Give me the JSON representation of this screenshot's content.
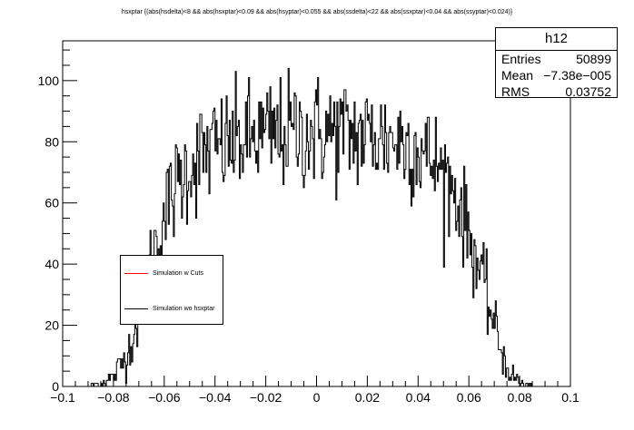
{
  "chart_data": {
    "type": "histogram",
    "title": "hsxptar {(abs(hsdelta)<8 && abs(hsxptar)<0.09 && abs(hsyptar)<0.055 && abs(ssdelta)<22 && abs(ssxptar)<0.04 && abs(ssyptar)<0.024)}",
    "xlim": [
      -0.1,
      0.1
    ],
    "ylim": [
      0,
      113
    ],
    "x_ticks": [
      "-0.1",
      "-0.08",
      "-0.06",
      "-0.04",
      "-0.02",
      "0",
      "0.02",
      "0.04",
      "0.06",
      "0.08",
      "0.1"
    ],
    "y_ticks": [
      "0",
      "20",
      "40",
      "60",
      "80",
      "100"
    ],
    "envelope": {
      "x": [
        -0.09,
        -0.085,
        -0.08,
        -0.075,
        -0.07,
        -0.065,
        -0.06,
        -0.055,
        -0.05,
        -0.045,
        -0.04,
        -0.03,
        -0.02,
        -0.01,
        0.0,
        0.01,
        0.02,
        0.03,
        0.04,
        0.045,
        0.05,
        0.055,
        0.06,
        0.065,
        0.07,
        0.075,
        0.08,
        0.085
      ],
      "y": [
        0,
        1,
        3,
        10,
        22,
        42,
        56,
        66,
        72,
        76,
        78,
        80,
        82,
        83,
        83,
        83,
        82,
        81,
        78,
        74,
        70,
        63,
        50,
        36,
        20,
        6,
        1,
        0
      ]
    },
    "bins": 500,
    "series": [
      {
        "name": "Simulation w Cuts",
        "color": "#ff0000"
      },
      {
        "name": "Simulation wo hsxptar",
        "color": "#000000"
      }
    ],
    "stats": {
      "name": "h12",
      "rows": [
        {
          "label": "Entries",
          "value": "50899"
        },
        {
          "label": "Mean",
          "value": "−7.38e−005"
        },
        {
          "label": "RMS",
          "value": "0.03752"
        }
      ]
    }
  }
}
